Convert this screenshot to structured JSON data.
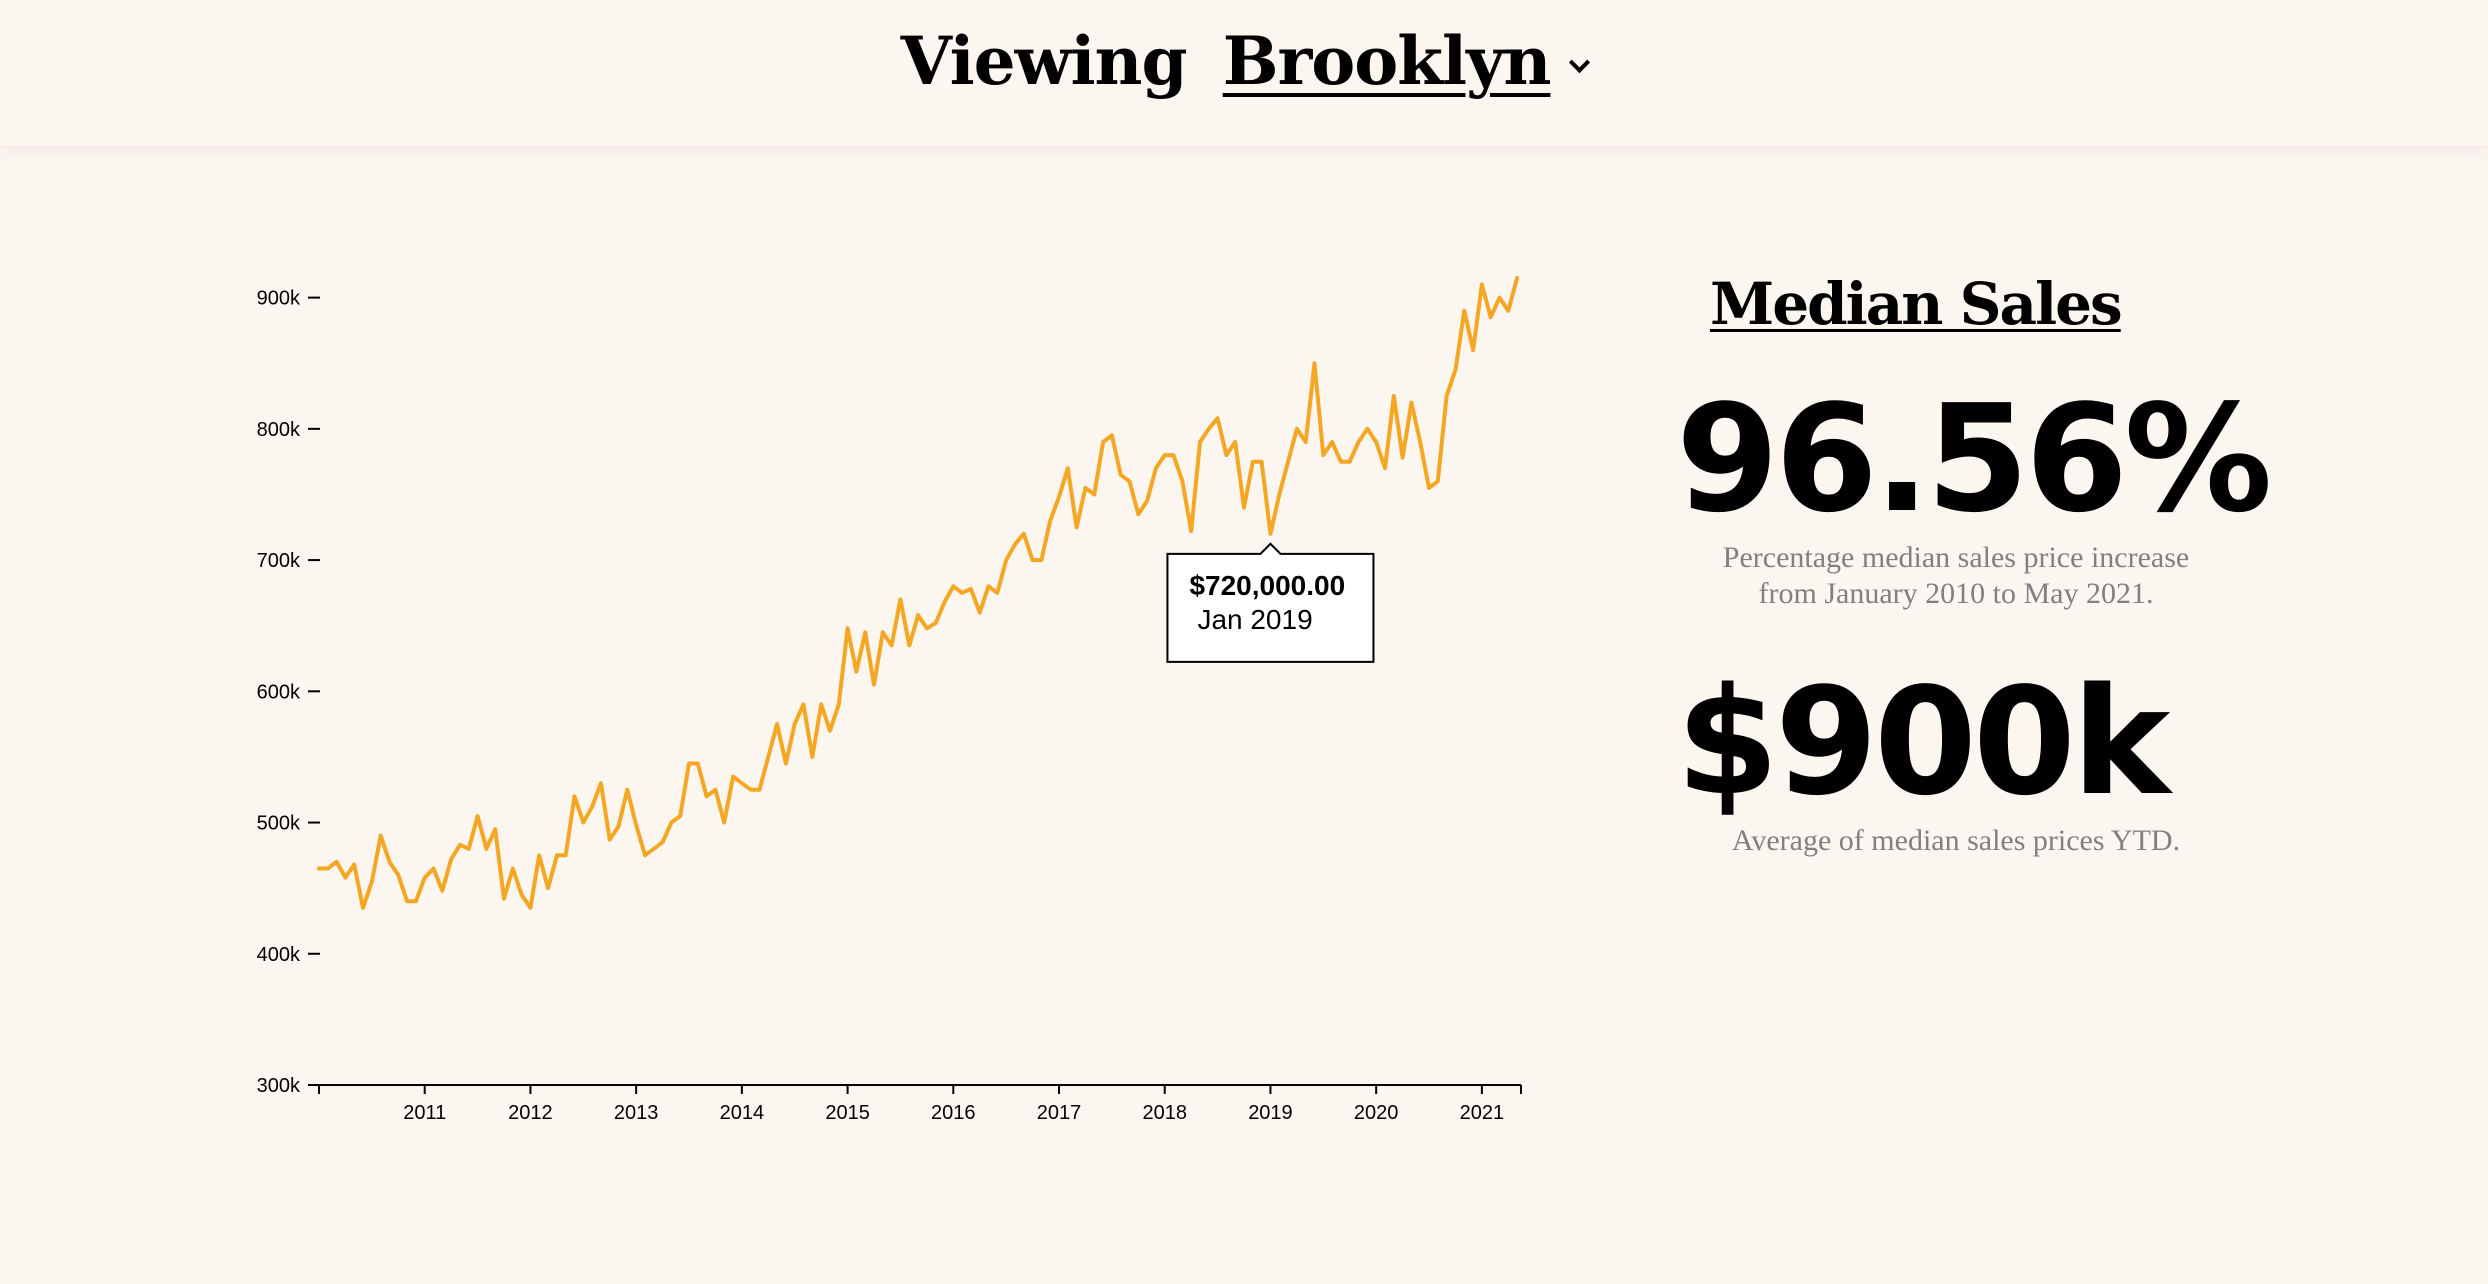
{
  "header": {
    "prefix": "Viewing",
    "borough": "Brooklyn"
  },
  "stats": {
    "title": "Median Sales",
    "percent_increase": "96.56%",
    "percent_desc_line1": "Percentage median sales price increase",
    "percent_desc_line2": "from January 2010 to May 2021.",
    "average": "$900k",
    "average_desc": "Average of median sales prices YTD."
  },
  "tooltip": {
    "value": "$720,000.00",
    "date": "Jan 2019",
    "month_index": 108
  },
  "colors": {
    "line": "#f5a623",
    "background": "#fcf6f1"
  },
  "chart_data": {
    "type": "line",
    "title": "",
    "xlabel": "",
    "ylabel": "",
    "x_start": "Jan 2010",
    "x_end": "May 2021",
    "xlim": [
      2010.0,
      2021.37
    ],
    "ylim": [
      300000,
      950000
    ],
    "y_ticks": [
      {
        "value": 300000,
        "label": "300k"
      },
      {
        "value": 400000,
        "label": "400k"
      },
      {
        "value": 500000,
        "label": "500k"
      },
      {
        "value": 600000,
        "label": "600k"
      },
      {
        "value": 700000,
        "label": "700k"
      },
      {
        "value": 800000,
        "label": "800k"
      },
      {
        "value": 900000,
        "label": "900k"
      }
    ],
    "x_ticks": [
      {
        "value": 2011,
        "label": "2011"
      },
      {
        "value": 2012,
        "label": "2012"
      },
      {
        "value": 2013,
        "label": "2013"
      },
      {
        "value": 2014,
        "label": "2014"
      },
      {
        "value": 2015,
        "label": "2015"
      },
      {
        "value": 2016,
        "label": "2016"
      },
      {
        "value": 2017,
        "label": "2017"
      },
      {
        "value": 2018,
        "label": "2018"
      },
      {
        "value": 2019,
        "label": "2019"
      },
      {
        "value": 2020,
        "label": "2020"
      },
      {
        "value": 2021,
        "label": "2021"
      }
    ],
    "grid": false,
    "series": [
      {
        "color": "#f5a623",
        "values": [
          465000,
          465000,
          470000,
          458000,
          468000,
          435000,
          455000,
          490000,
          470000,
          460000,
          440000,
          440000,
          458000,
          465000,
          448000,
          472000,
          483000,
          480000,
          505000,
          480000,
          495000,
          442000,
          465000,
          445000,
          435000,
          475000,
          450000,
          475000,
          475000,
          520000,
          500000,
          512000,
          530000,
          487000,
          497000,
          525000,
          498000,
          475000,
          480000,
          485000,
          500000,
          505000,
          545000,
          545000,
          520000,
          525000,
          500000,
          535000,
          530000,
          525000,
          525000,
          550000,
          575000,
          545000,
          575000,
          590000,
          550000,
          590000,
          570000,
          590000,
          648000,
          615000,
          645000,
          605000,
          645000,
          635000,
          670000,
          635000,
          658000,
          648000,
          652000,
          668000,
          680000,
          675000,
          678000,
          660000,
          680000,
          675000,
          700000,
          712000,
          720000,
          700000,
          700000,
          730000,
          748000,
          770000,
          725000,
          755000,
          750000,
          790000,
          795000,
          765000,
          760000,
          735000,
          745000,
          770000,
          780000,
          780000,
          760000,
          722000,
          790000,
          800000,
          808000,
          780000,
          790000,
          740000,
          775000,
          775000,
          720000,
          750000,
          775000,
          800000,
          790000,
          850000,
          780000,
          790000,
          775000,
          775000,
          790000,
          800000,
          790000,
          770000,
          825000,
          778000,
          820000,
          790000,
          755000,
          760000,
          825000,
          845000,
          890000,
          860000,
          910000,
          885000,
          900000,
          890000,
          915000
        ]
      }
    ]
  }
}
